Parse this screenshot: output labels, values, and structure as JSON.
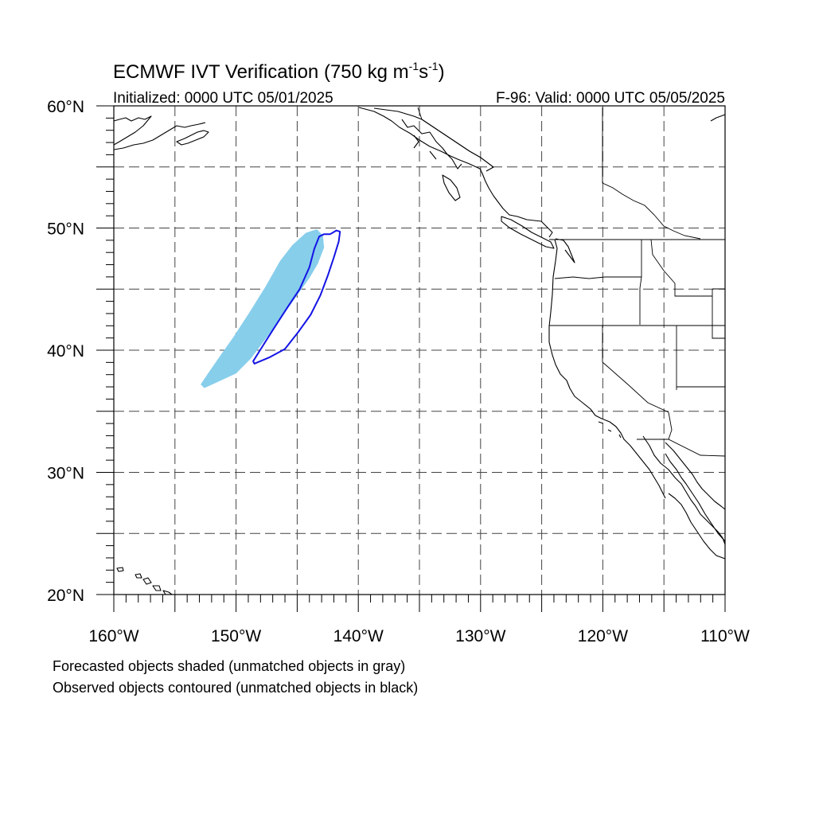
{
  "title_main": "ECMWF IVT Verification (750 kg m",
  "title_sup1": "-1",
  "title_mid": "s",
  "title_sup2": "-1",
  "title_end": ")",
  "initialized": "Initialized: 0000 UTC 05/01/2025",
  "valid": "F-96: Valid: 0000 UTC 05/05/2025",
  "footnotes": [
    "Forecasted objects shaded (unmatched objects in gray)",
    "Observed objects contoured (unmatched objects in black)"
  ],
  "axes": {
    "lon_range": [
      -160,
      -110
    ],
    "lat_range": [
      20,
      60
    ],
    "lon_ticks": [
      {
        "value": -160,
        "label": "160°W"
      },
      {
        "value": -150,
        "label": "150°W"
      },
      {
        "value": -140,
        "label": "140°W"
      },
      {
        "value": -130,
        "label": "130°W"
      },
      {
        "value": -120,
        "label": "120°W"
      },
      {
        "value": -110,
        "label": "110°W"
      }
    ],
    "lat_ticks": [
      {
        "value": 60,
        "label": "60°N"
      },
      {
        "value": 50,
        "label": "50°N"
      },
      {
        "value": 40,
        "label": "40°N"
      },
      {
        "value": 30,
        "label": "30°N"
      },
      {
        "value": 20,
        "label": "20°N"
      }
    ],
    "grid_spacing_deg": 5,
    "grid": "dashed"
  },
  "colors": {
    "forecast_fill": "#87ceeb",
    "observed_contour": "#1414e6",
    "coastline": "#000000",
    "grid": "#444444"
  },
  "forecast_object": {
    "description_color": "light blue",
    "polygon": [
      [
        -152.6,
        36.9
      ],
      [
        -151.5,
        37.4
      ],
      [
        -150.0,
        38.1
      ],
      [
        -148.8,
        39.3
      ],
      [
        -147.6,
        40.9
      ],
      [
        -146.2,
        42.8
      ],
      [
        -145.0,
        44.5
      ],
      [
        -144.0,
        45.9
      ],
      [
        -143.3,
        47.1
      ],
      [
        -142.8,
        48.4
      ],
      [
        -142.9,
        49.4
      ],
      [
        -143.4,
        49.9
      ],
      [
        -144.3,
        49.6
      ],
      [
        -145.4,
        48.6
      ],
      [
        -146.4,
        47.3
      ],
      [
        -147.6,
        45.2
      ],
      [
        -148.9,
        43.1
      ],
      [
        -150.2,
        41.1
      ],
      [
        -151.4,
        39.4
      ],
      [
        -152.3,
        38.1
      ],
      [
        -152.9,
        37.2
      ]
    ]
  },
  "observed_object": {
    "polygon": [
      [
        -148.5,
        38.9
      ],
      [
        -147.3,
        39.4
      ],
      [
        -146.0,
        40.1
      ],
      [
        -144.9,
        41.5
      ],
      [
        -143.9,
        42.9
      ],
      [
        -143.1,
        44.5
      ],
      [
        -142.5,
        46.1
      ],
      [
        -142.0,
        47.6
      ],
      [
        -141.6,
        48.9
      ],
      [
        -141.5,
        49.7
      ],
      [
        -141.8,
        49.8
      ],
      [
        -142.3,
        49.5
      ],
      [
        -142.8,
        49.5
      ],
      [
        -143.2,
        49.3
      ],
      [
        -143.6,
        48.3
      ],
      [
        -144.0,
        46.8
      ],
      [
        -144.8,
        45.0
      ],
      [
        -145.8,
        43.5
      ],
      [
        -146.9,
        41.8
      ],
      [
        -148.1,
        39.9
      ],
      [
        -148.6,
        39.1
      ]
    ]
  }
}
